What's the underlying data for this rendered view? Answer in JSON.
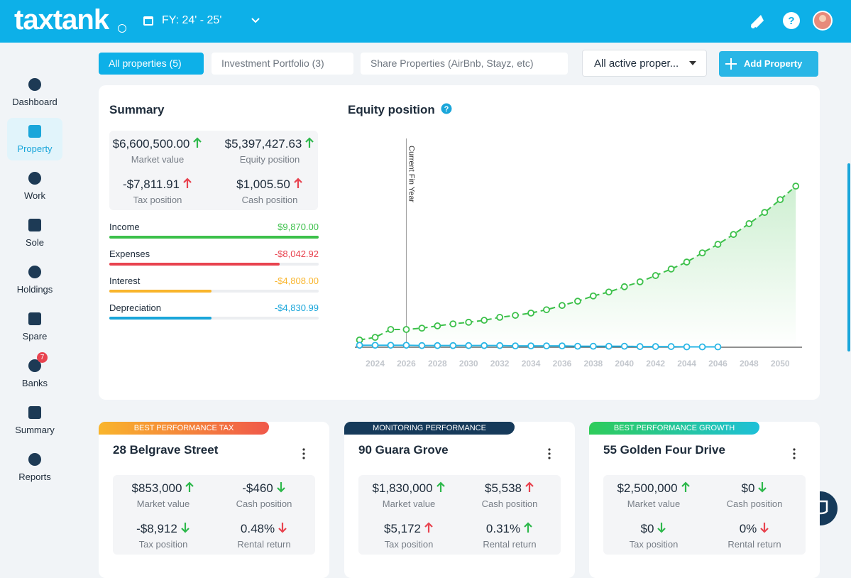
{
  "header": {
    "logo": "taxtank",
    "fy": "FY: 24' - 25'"
  },
  "nav": {
    "items": [
      "Dashboard",
      "Property",
      "Work",
      "Sole",
      "Holdings",
      "Spare",
      "Banks",
      "Summary",
      "Reports"
    ],
    "active": 1,
    "badge": {
      "item": 6,
      "text": "7"
    }
  },
  "tabs": {
    "items": [
      "All properties (5)",
      "Investment Portfolio (3)",
      "Share Properties (AirBnb, Stayz, etc)"
    ],
    "active": 0,
    "filter": "All active proper...",
    "add_button": "Add Property"
  },
  "summary": {
    "title": "Summary",
    "stats": [
      {
        "value": "$6,600,500.00",
        "label": "Market value",
        "trend": "up",
        "good": true
      },
      {
        "value": "$5,397,427.63",
        "label": "Equity position",
        "trend": "up",
        "good": true
      },
      {
        "value": "-$7,811.91",
        "label": "Tax position",
        "trend": "up",
        "good": false
      },
      {
        "value": "$1,005.50",
        "label": "Cash position",
        "trend": "up",
        "good": false
      }
    ],
    "bars": [
      {
        "label": "Income",
        "amount": 9870,
        "text": "$9,870.00",
        "color": "#3cc04a"
      },
      {
        "label": "Expenses",
        "amount": -8042.92,
        "text": "-$8,042.92",
        "color": "#e8434f"
      },
      {
        "label": "Interest",
        "amount": -4808,
        "text": "-$4,808.00",
        "color": "#f9b52c"
      },
      {
        "label": "Depreciation",
        "amount": -4830.99,
        "text": "-$4,830.99",
        "color": "#1aa6da"
      }
    ]
  },
  "chart_data": {
    "type": "line",
    "title": "Equity position",
    "x": [
      2023,
      2024,
      2025,
      2026,
      2027,
      2028,
      2029,
      2030,
      2031,
      2032,
      2033,
      2034,
      2035,
      2036,
      2037,
      2038,
      2039,
      2040,
      2041,
      2042,
      2043,
      2044,
      2045,
      2046,
      2047,
      2048,
      2049,
      2050,
      2051
    ],
    "series": [
      {
        "color": "#3cc04a",
        "area": true,
        "values": [
          2.2,
          3.0,
          5.4,
          5.4,
          5.8,
          6.5,
          7.1,
          7.6,
          8.2,
          9.1,
          9.7,
          10.4,
          11.4,
          12.7,
          14.0,
          15.6,
          16.8,
          18.4,
          19.9,
          21.8,
          23.8,
          25.9,
          28.7,
          31.3,
          34.3,
          37.6,
          41.0,
          44.9,
          49.0
        ]
      },
      {
        "color": "#29b6e6",
        "area": false,
        "values": [
          0.6,
          0.6,
          0.6,
          0.6,
          0.5,
          0.5,
          0.5,
          0.5,
          0.5,
          0.5,
          0.4,
          0.4,
          0.4,
          0.4,
          0.3,
          0.3,
          0.3,
          0.3,
          0.2,
          0.2,
          0.2,
          0.1,
          0.1,
          0.1,
          null,
          null,
          null,
          null,
          null
        ]
      }
    ],
    "xlim": [
      2022.7,
      2051.4
    ],
    "ylim": [
      0,
      63.5
    ],
    "xticks": [
      2024,
      2026,
      2028,
      2030,
      2032,
      2034,
      2036,
      2038,
      2040,
      2042,
      2044,
      2046,
      2048,
      2050
    ],
    "annotation": {
      "text": "Current Fin Year",
      "x": 2026
    }
  },
  "cards": [
    {
      "badge": "BEST PERFORMANCE TAX",
      "badge_colors": [
        "#f9b52c",
        "#f0584a"
      ],
      "name": "28 Belgrave Street",
      "stats": [
        {
          "value": "$853,000",
          "label": "Market value",
          "trend": "up",
          "good": true
        },
        {
          "value": "-$460",
          "label": "Cash position",
          "trend": "down",
          "good": true
        },
        {
          "value": "-$8,912",
          "label": "Tax position",
          "trend": "down",
          "good": true
        },
        {
          "value": "0.48%",
          "label": "Rental return",
          "trend": "down",
          "good": false
        }
      ]
    },
    {
      "badge": "MONITORING PERFORMANCE",
      "badge_colors": [
        "#163a5a",
        "#163a5a"
      ],
      "name": "90 Guara Grove",
      "stats": [
        {
          "value": "$1,830,000",
          "label": "Market value",
          "trend": "up",
          "good": true
        },
        {
          "value": "$5,538",
          "label": "Cash position",
          "trend": "up",
          "good": false
        },
        {
          "value": "$5,172",
          "label": "Tax position",
          "trend": "up",
          "good": false
        },
        {
          "value": "0.31%",
          "label": "Rental return",
          "trend": "up",
          "good": true
        }
      ]
    },
    {
      "badge": "BEST PERFORMANCE GROWTH",
      "badge_colors": [
        "#2ecc5a",
        "#1ec0d8"
      ],
      "name": "55 Golden Four Drive",
      "stats": [
        {
          "value": "$2,500,000",
          "label": "Market value",
          "trend": "up",
          "good": true
        },
        {
          "value": "$0",
          "label": "Cash position",
          "trend": "down",
          "good": true
        },
        {
          "value": "$0",
          "label": "Tax position",
          "trend": "down",
          "good": true
        },
        {
          "value": "0%",
          "label": "Rental return",
          "trend": "down",
          "good": false
        }
      ]
    }
  ]
}
